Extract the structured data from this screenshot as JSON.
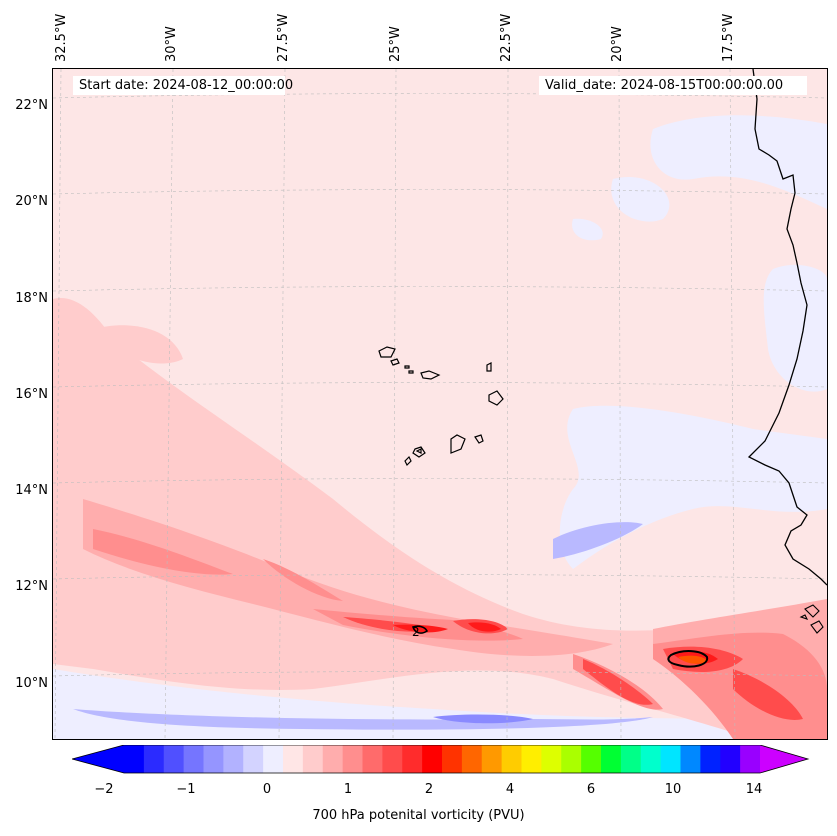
{
  "map": {
    "region": "Cabo Verde and West African coast",
    "info": {
      "start_date": "Start date: 2024-08-12_00:00:00",
      "valid_date": "Valid_date: 2024-08-15T00:00:00.00"
    },
    "lon_labels": [
      "32.5°W",
      "30°W",
      "27.5°W",
      "25°W",
      "22.5°W",
      "20°W",
      "17.5°W"
    ],
    "lat_labels": [
      "22°N",
      "20°N",
      "18°N",
      "16°N",
      "14°N",
      "12°N",
      "10°N"
    ],
    "contour_label": "2",
    "colors": {
      "background": "#fde6e6",
      "coast": "#000000",
      "grid": "#bdbdbd"
    }
  },
  "colorbar": {
    "label": "700 hPa potenital vorticity (PVU)",
    "ticks": [
      "−2",
      "−1",
      "0",
      "1",
      "2",
      "4",
      "6",
      "10",
      "14"
    ],
    "colors": [
      "#0000ff",
      "#2b2bff",
      "#5050ff",
      "#7575ff",
      "#9595ff",
      "#b2b2ff",
      "#d3d3ff",
      "#eeeeff",
      "#ffe6e6",
      "#ffcccc",
      "#ffadad",
      "#ff8e8e",
      "#ff6b6b",
      "#ff4c4c",
      "#ff2c2c",
      "#ff0000",
      "#ff3300",
      "#ff6600",
      "#ff9900",
      "#ffcc00",
      "#ffee00",
      "#ddff00",
      "#aaff00",
      "#55ff00",
      "#00ff33",
      "#00ff88",
      "#00ffcc",
      "#00e5ff",
      "#0088ff",
      "#0022ff",
      "#2200ff",
      "#9900ff"
    ],
    "extend_low": "#0000ff",
    "extend_high": "#cc00ff"
  }
}
